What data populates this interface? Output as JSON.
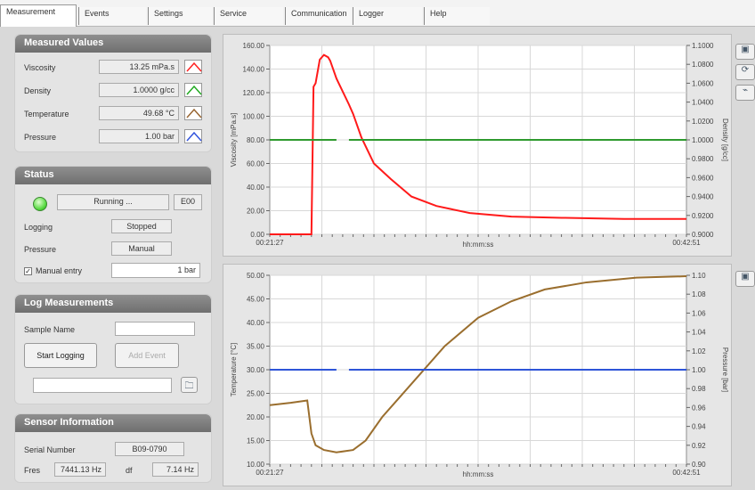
{
  "tabs": [
    "Measurement",
    "Events",
    "Settings",
    "Service",
    "Communication",
    "Logger",
    "Help"
  ],
  "measured": {
    "title": "Measured Values",
    "rows": [
      {
        "label": "Viscosity",
        "value": "13.25 mPa.s"
      },
      {
        "label": "Density",
        "value": "1.0000 g/cc"
      },
      {
        "label": "Temperature",
        "value": "49.68 °C"
      },
      {
        "label": "Pressure",
        "value": "1.00 bar"
      }
    ]
  },
  "status": {
    "title": "Status",
    "state": "Running ...",
    "code": "E00",
    "logging_label": "Logging",
    "logging_value": "Stopped",
    "pressure_label": "Pressure",
    "pressure_value": "Manual",
    "manual_label": "Manual entry",
    "manual_value": "1 bar"
  },
  "log": {
    "title": "Log Measurements",
    "sample_label": "Sample Name",
    "sample_value": "",
    "start": "Start Logging",
    "add": "Add Event"
  },
  "sensor": {
    "title": "Sensor Information",
    "serial_label": "Serial Number",
    "serial_value": "B09-0790",
    "fres_label": "Fres",
    "fres_value": "7441.13 Hz",
    "df_label": "df",
    "df_value": "7.14 Hz"
  },
  "chart_data": [
    {
      "type": "line",
      "xlabel": "hh:mm:ss",
      "ylabel": "Viscosity [mPa.s]",
      "y2label": "Density [g/cc]",
      "xticks": [
        "00:21:27",
        "00:42:51"
      ],
      "yticks": [
        "0.00",
        "20.00",
        "40.00",
        "60.00",
        "80.00",
        "100.00",
        "120.00",
        "140.00",
        "160.00"
      ],
      "y2ticks": [
        "0.9000",
        "0.9200",
        "0.9400",
        "0.9600",
        "0.9800",
        "1.0000",
        "1.0200",
        "1.0400",
        "1.0600",
        "1.0800",
        "1.1000"
      ],
      "ylim": [
        0,
        160
      ],
      "y2lim": [
        0.9,
        1.1
      ],
      "series": [
        {
          "color": "#ff1a1a",
          "x": [
            0,
            0.02,
            0.04,
            0.06,
            0.08,
            0.09,
            0.1,
            0.105,
            0.11,
            0.12,
            0.13,
            0.14,
            0.145,
            0.15,
            0.16,
            0.19,
            0.2,
            0.22,
            0.25,
            0.29,
            0.34,
            0.4,
            0.48,
            0.58,
            0.7,
            0.85,
            1.0
          ],
          "y": [
            0,
            0,
            0,
            0,
            0,
            0,
            0,
            125,
            128,
            148,
            152,
            150,
            147,
            142,
            132,
            110,
            102,
            82,
            60,
            47,
            32,
            24,
            18,
            15,
            14,
            13,
            13
          ]
        },
        {
          "color": "#2e9a2e",
          "x": [
            0,
            0.16,
            0.19,
            1.0
          ],
          "y": [
            1.0,
            1.0,
            1.0,
            1.0
          ]
        }
      ]
    },
    {
      "type": "line",
      "xlabel": "hh:mm:ss",
      "ylabel": "Temperature [°C]",
      "y2label": "Pressure [bar]",
      "xticks": [
        "00:21:27",
        "00:42:51"
      ],
      "yticks": [
        "10.00",
        "15.00",
        "20.00",
        "25.00",
        "30.00",
        "35.00",
        "40.00",
        "45.00",
        "50.00"
      ],
      "y2ticks": [
        "0.90",
        "0.92",
        "0.94",
        "0.96",
        "0.98",
        "1.00",
        "1.02",
        "1.04",
        "1.06",
        "1.08",
        "1.10"
      ],
      "ylim": [
        10,
        50
      ],
      "y2lim": [
        0.9,
        1.1
      ],
      "series": [
        {
          "color": "#9a6e2e",
          "x": [
            0,
            0.05,
            0.09,
            0.1,
            0.11,
            0.13,
            0.16,
            0.2,
            0.23,
            0.27,
            0.31,
            0.36,
            0.42,
            0.5,
            0.58,
            0.66,
            0.76,
            0.88,
            1.0
          ],
          "y": [
            22.5,
            23,
            23.5,
            16.5,
            14,
            13,
            12.5,
            13,
            15,
            20,
            24,
            29,
            35,
            41,
            44.5,
            47,
            48.5,
            49.5,
            49.8
          ]
        },
        {
          "color": "#2e55d8",
          "x": [
            0,
            0.16,
            0.19,
            1.0
          ],
          "y": [
            1.0,
            1.0,
            1.0,
            1.0
          ]
        }
      ]
    }
  ]
}
